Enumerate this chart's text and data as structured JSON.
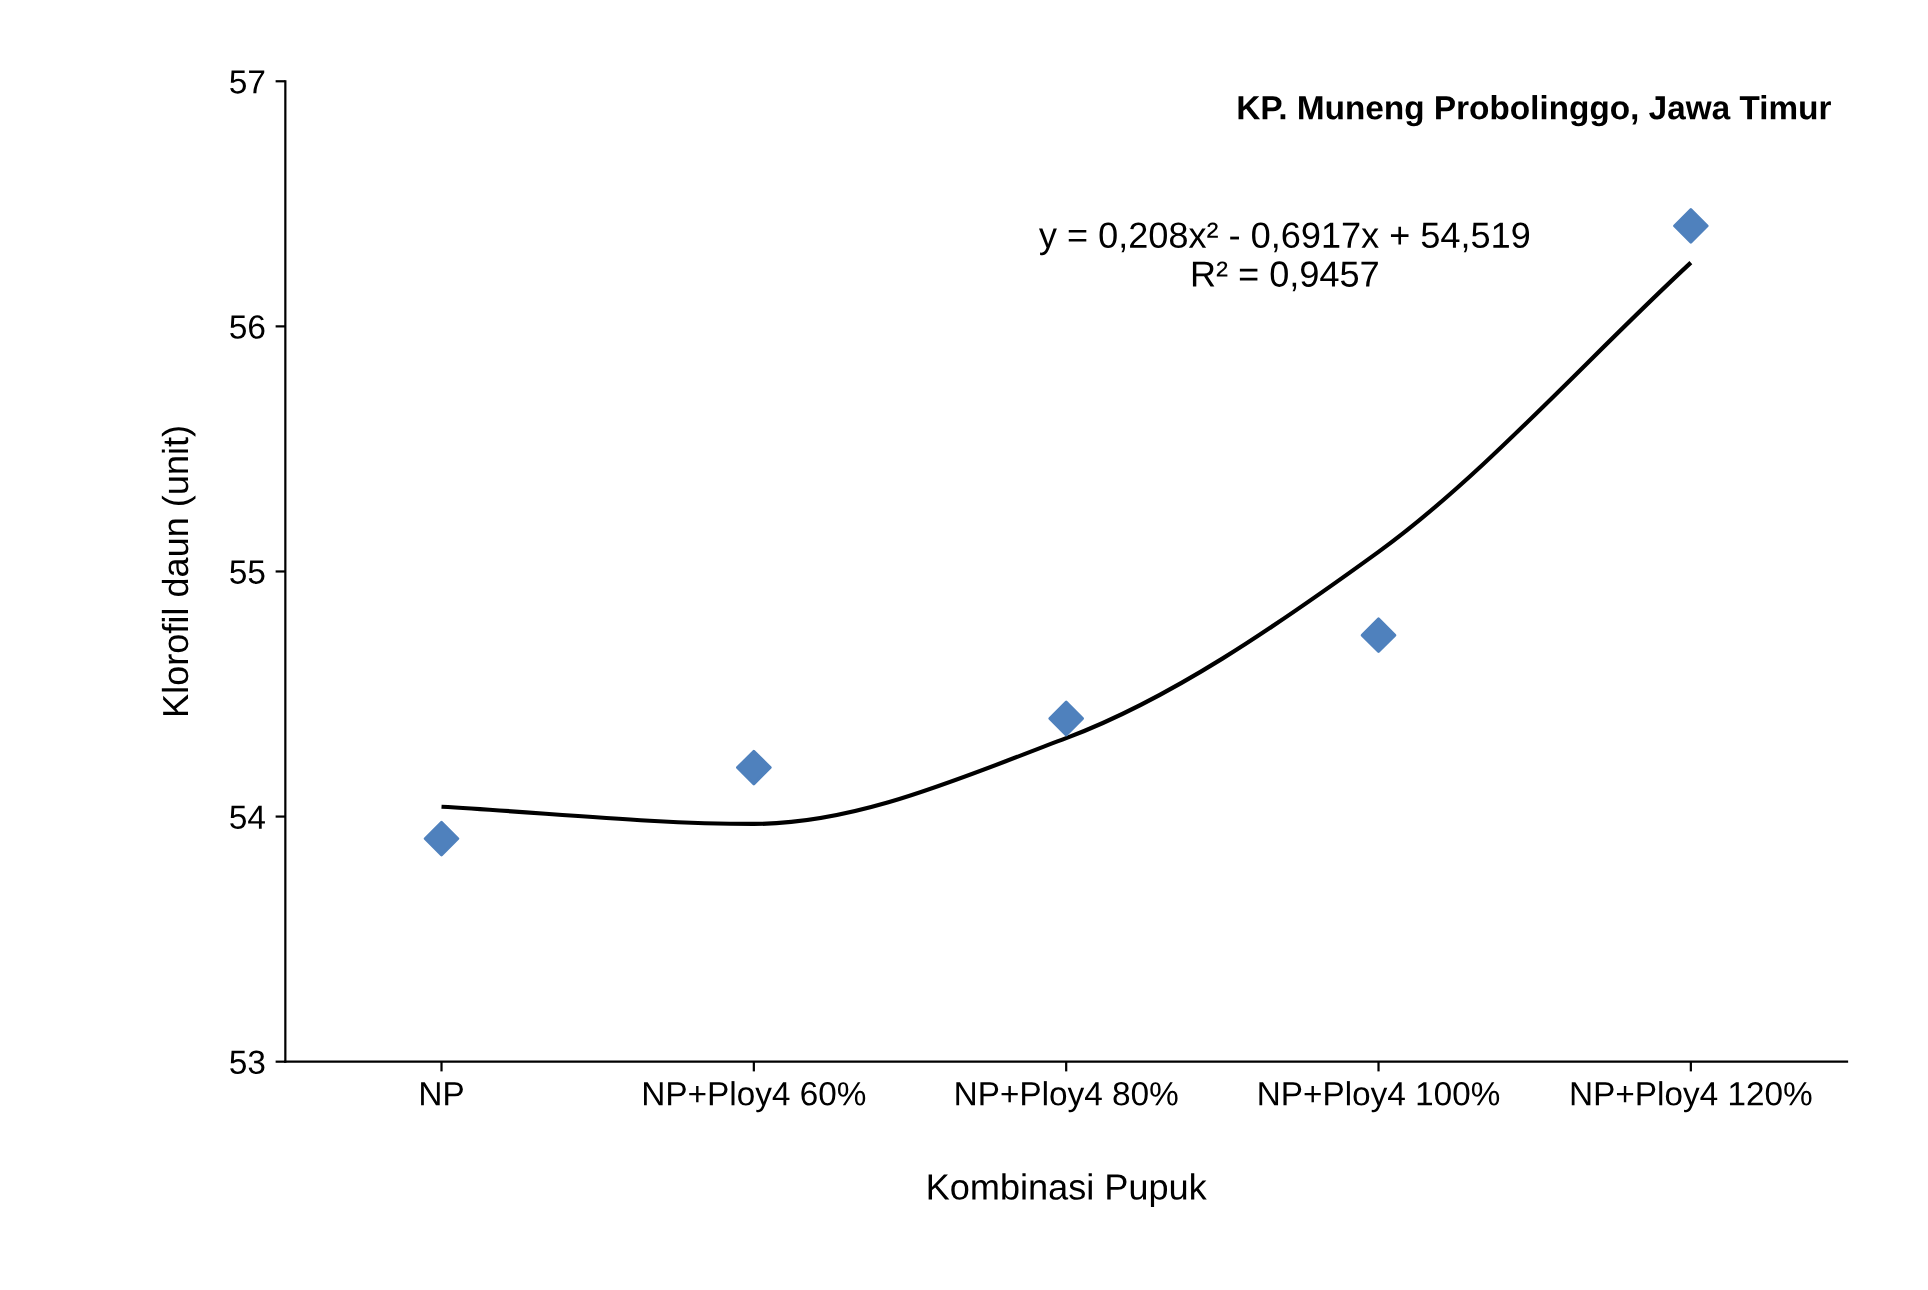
{
  "chart_data": {
    "type": "scatter",
    "title": "KP. Muneng Probolinggo, Jawa Timur",
    "xlabel": "Kombinasi Pupuk",
    "ylabel": "Klorofil daun (unit)",
    "categories": [
      "NP",
      "NP+Ploy4 60%",
      "NP+Ploy4 80%",
      "NP+Ploy4 100%",
      "NP+Ploy4 120%"
    ],
    "series": [
      {
        "color": "#4f81bd",
        "marker": "diamond",
        "values": [
          53.91,
          54.2,
          54.4,
          54.74,
          56.41
        ]
      },
      {
        "type": "line",
        "color": "#000000",
        "values": [
          54.04,
          53.97,
          54.32,
          55.08,
          56.26
        ]
      }
    ],
    "annotations": [
      "y = 0,208x² - 0,6917x + 54,519\nR² = 0,9457"
    ],
    "ylim": [
      53,
      57
    ],
    "yticks": [
      53,
      54,
      55,
      56,
      57
    ],
    "grid": false,
    "legend": false
  }
}
